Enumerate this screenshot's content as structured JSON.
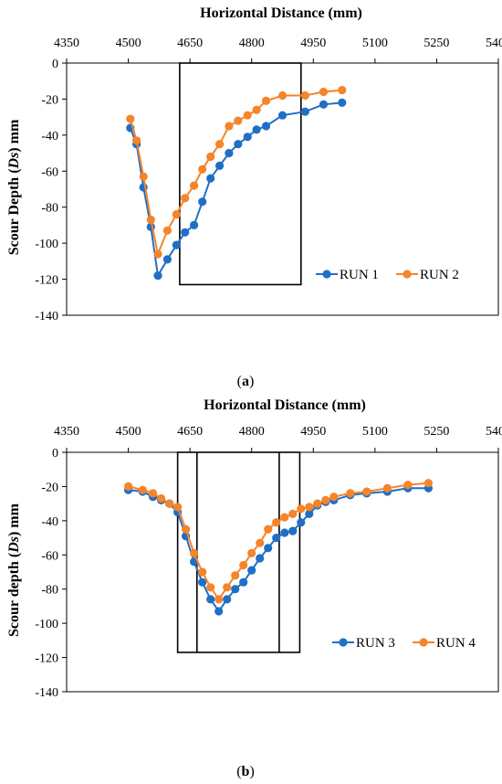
{
  "chart_data": [
    {
      "type": "line",
      "panel_label": "(a)",
      "xlabel": "Horizontal Distance (mm)",
      "ylabel": "Scour Depth (Ds) mm",
      "xaxis_position": "top",
      "xlim": [
        4350,
        5400
      ],
      "ylim": [
        -140,
        0
      ],
      "xticks": [
        4350,
        4500,
        4650,
        4800,
        4950,
        5100,
        5250,
        5400
      ],
      "yticks": [
        0,
        -20,
        -40,
        -60,
        -80,
        -100,
        -120,
        -140
      ],
      "grid": false,
      "legend_position": "bottom-right",
      "overlay_box": {
        "x0": 4625,
        "x1": 4920,
        "y_bottom": -123,
        "y_top": 0
      },
      "overlay_dividers": [],
      "series": [
        {
          "name": "RUN 1",
          "color": "#1f6fc5",
          "points": [
            [
              4505,
              -36
            ],
            [
              4520,
              -45
            ],
            [
              4537,
              -69
            ],
            [
              4555,
              -91
            ],
            [
              4572,
              -118
            ],
            [
              4595,
              -109
            ],
            [
              4617,
              -101
            ],
            [
              4638,
              -94
            ],
            [
              4660,
              -90
            ],
            [
              4680,
              -77
            ],
            [
              4700,
              -64
            ],
            [
              4722,
              -57
            ],
            [
              4745,
              -50
            ],
            [
              4767,
              -45
            ],
            [
              4790,
              -41
            ],
            [
              4812,
              -37
            ],
            [
              4835,
              -35
            ],
            [
              4875,
              -29
            ],
            [
              4930,
              -27
            ],
            [
              4975,
              -23
            ],
            [
              5020,
              -22
            ]
          ]
        },
        {
          "name": "RUN 2",
          "color": "#f5842a",
          "points": [
            [
              4505,
              -31
            ],
            [
              4520,
              -43
            ],
            [
              4537,
              -63
            ],
            [
              4555,
              -87
            ],
            [
              4572,
              -106
            ],
            [
              4595,
              -93
            ],
            [
              4617,
              -84
            ],
            [
              4638,
              -75
            ],
            [
              4660,
              -68
            ],
            [
              4680,
              -59
            ],
            [
              4700,
              -52
            ],
            [
              4722,
              -45
            ],
            [
              4745,
              -35
            ],
            [
              4767,
              -32
            ],
            [
              4790,
              -29
            ],
            [
              4812,
              -26
            ],
            [
              4835,
              -21
            ],
            [
              4875,
              -18
            ],
            [
              4930,
              -18
            ],
            [
              4975,
              -16
            ],
            [
              5020,
              -15
            ]
          ]
        }
      ]
    },
    {
      "type": "line",
      "panel_label": "(b)",
      "xlabel": "Horizontal Distance (mm)",
      "ylabel": "Scour depth (Ds) mm",
      "xaxis_position": "top",
      "xlim": [
        4350,
        5400
      ],
      "ylim": [
        -140,
        0
      ],
      "xticks": [
        4350,
        4500,
        4650,
        4800,
        4950,
        5100,
        5250,
        5400
      ],
      "yticks": [
        0,
        -20,
        -40,
        -60,
        -80,
        -100,
        -120,
        -140
      ],
      "grid": false,
      "legend_position": "bottom-right",
      "overlay_box": {
        "x0": 4620,
        "x1": 4917,
        "y_bottom": -117,
        "y_top": 0
      },
      "overlay_dividers": [
        4667,
        4867
      ],
      "series": [
        {
          "name": "RUN 3",
          "color": "#1f6fc5",
          "points": [
            [
              4500,
              -22
            ],
            [
              4535,
              -23
            ],
            [
              4560,
              -26
            ],
            [
              4580,
              -28
            ],
            [
              4600,
              -30
            ],
            [
              4620,
              -35
            ],
            [
              4640,
              -49
            ],
            [
              4660,
              -64
            ],
            [
              4680,
              -76
            ],
            [
              4700,
              -86
            ],
            [
              4720,
              -93
            ],
            [
              4740,
              -86
            ],
            [
              4760,
              -80
            ],
            [
              4780,
              -76
            ],
            [
              4800,
              -69
            ],
            [
              4820,
              -62
            ],
            [
              4840,
              -56
            ],
            [
              4860,
              -50
            ],
            [
              4880,
              -47
            ],
            [
              4900,
              -46
            ],
            [
              4920,
              -41
            ],
            [
              4940,
              -36
            ],
            [
              4960,
              -31
            ],
            [
              4980,
              -29
            ],
            [
              5000,
              -28
            ],
            [
              5040,
              -25
            ],
            [
              5080,
              -24
            ],
            [
              5130,
              -23
            ],
            [
              5180,
              -21
            ],
            [
              5230,
              -21
            ]
          ]
        },
        {
          "name": "RUN 4",
          "color": "#f5842a",
          "points": [
            [
              4500,
              -20
            ],
            [
              4535,
              -22
            ],
            [
              4560,
              -24
            ],
            [
              4580,
              -27
            ],
            [
              4600,
              -30
            ],
            [
              4620,
              -32
            ],
            [
              4640,
              -45
            ],
            [
              4660,
              -59
            ],
            [
              4680,
              -70
            ],
            [
              4700,
              -79
            ],
            [
              4720,
              -86
            ],
            [
              4740,
              -79
            ],
            [
              4760,
              -72
            ],
            [
              4780,
              -66
            ],
            [
              4800,
              -59
            ],
            [
              4820,
              -53
            ],
            [
              4840,
              -45
            ],
            [
              4860,
              -41
            ],
            [
              4880,
              -38
            ],
            [
              4900,
              -36
            ],
            [
              4920,
              -33
            ],
            [
              4940,
              -32
            ],
            [
              4960,
              -30
            ],
            [
              4980,
              -28
            ],
            [
              5000,
              -26
            ],
            [
              5040,
              -24
            ],
            [
              5080,
              -23
            ],
            [
              5130,
              -21
            ],
            [
              5180,
              -19
            ],
            [
              5230,
              -18
            ]
          ]
        }
      ]
    }
  ]
}
